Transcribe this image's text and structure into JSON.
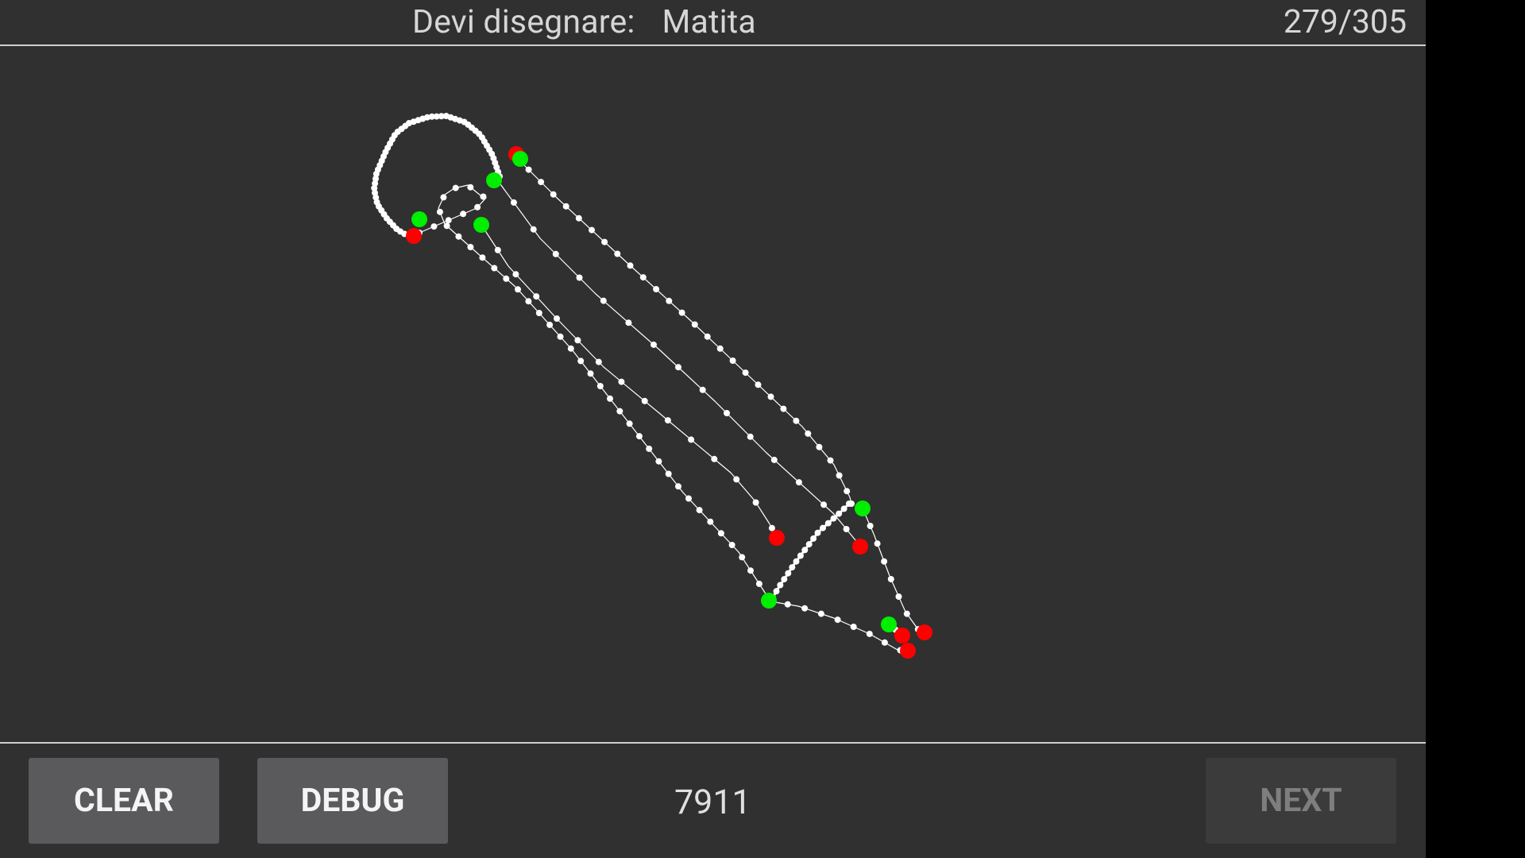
{
  "header": {
    "prompt_label": "Devi disegnare:",
    "target_word": "Matita",
    "progress": "279/305"
  },
  "canvas": {
    "stroke_color": "#ffffff",
    "start_point_color": "#00ee00",
    "end_point_color": "#ff0000"
  },
  "footer": {
    "clear_label": "CLEAR",
    "debug_label": "DEBUG",
    "score": "7911",
    "next_label": "NEXT"
  },
  "colors": {
    "background": "#303030",
    "button": "#5a5a5c",
    "button_disabled": "#3b3b3b",
    "text": "#d6d6d6"
  }
}
